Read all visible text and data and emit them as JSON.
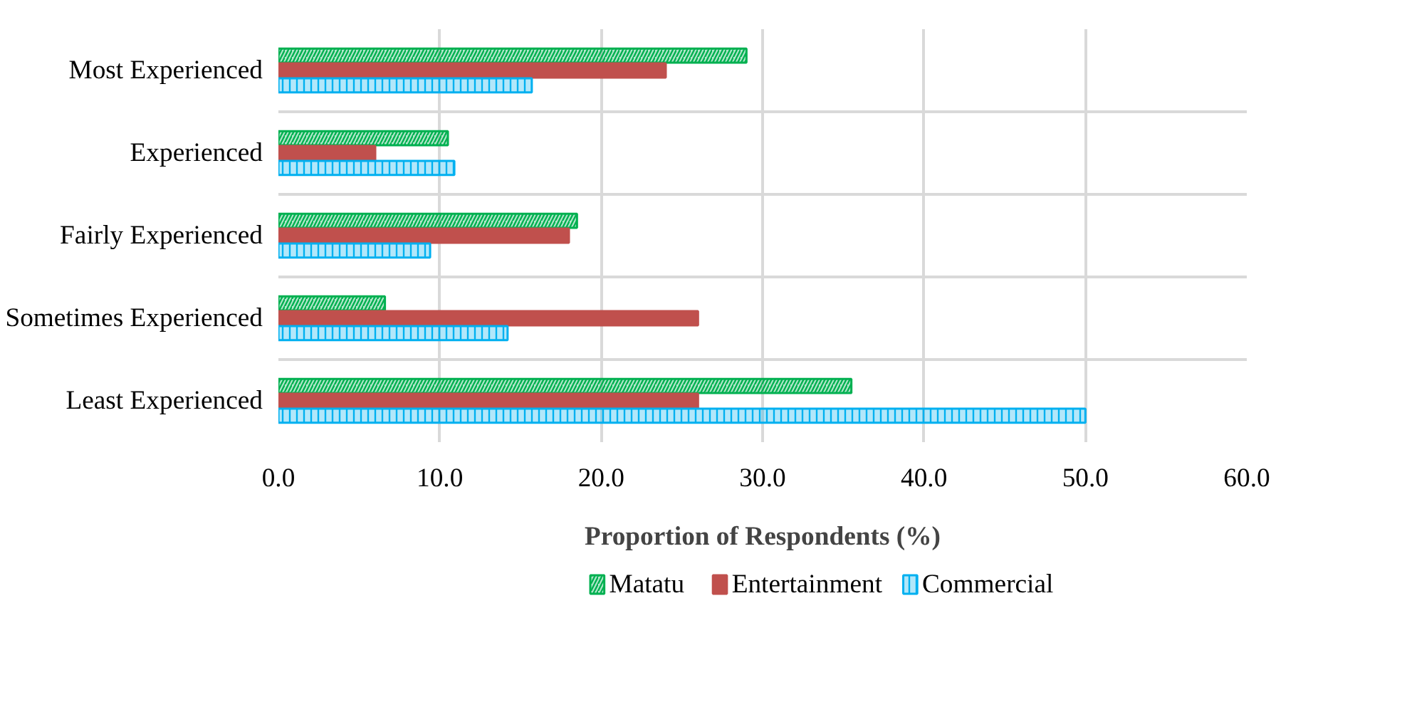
{
  "chart_data": {
    "type": "bar",
    "orientation": "horizontal",
    "xlabel": "Proportion of Respondents (%)",
    "categories": [
      "Most Experienced",
      "Experienced",
      "Fairly Experienced",
      "Sometimes Experienced",
      "Least Experienced"
    ],
    "series": [
      {
        "name": "Matatu",
        "color": "#00b050",
        "values": [
          29.0,
          10.5,
          18.5,
          6.6,
          35.5
        ]
      },
      {
        "name": "Entertainment",
        "color": "#c0504d",
        "values": [
          24.0,
          6.0,
          18.0,
          26.0,
          26.0
        ]
      },
      {
        "name": "Commercial",
        "color": "#00b0f0",
        "values": [
          15.7,
          10.9,
          9.4,
          14.2,
          50.0
        ]
      }
    ],
    "xlim": [
      0,
      60
    ],
    "xticks": [
      {
        "value": 0,
        "label": "0.0"
      },
      {
        "value": 10,
        "label": "10.0"
      },
      {
        "value": 20,
        "label": "20.0"
      },
      {
        "value": 30,
        "label": "30.0"
      },
      {
        "value": 40,
        "label": "40.0"
      },
      {
        "value": 50,
        "label": "50.0"
      },
      {
        "value": 60,
        "label": "60.0"
      }
    ],
    "grid": true,
    "legend": "bottom"
  }
}
